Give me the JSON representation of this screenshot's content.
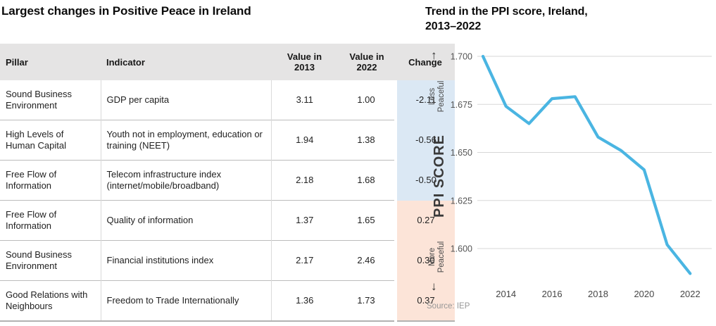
{
  "table": {
    "title": "Largest changes in Positive Peace in Ireland",
    "columns": [
      "Pillar",
      "Indicator",
      "Value in 2013",
      "Value in 2022",
      "Change"
    ],
    "rows": [
      {
        "pillar": "Sound Business Environment",
        "indicator": "GDP per capita",
        "value_2013": "3.11",
        "value_2022": "1.00",
        "change": "-2.11",
        "direction": "negative"
      },
      {
        "pillar": "High Levels of Human Capital",
        "indicator": "Youth not in employment, education or training (NEET)",
        "value_2013": "1.94",
        "value_2022": "1.38",
        "change": "-0.56",
        "direction": "negative"
      },
      {
        "pillar": "Free Flow of Information",
        "indicator": "Telecom infrastructure index (internet/mobile/broadband)",
        "value_2013": "2.18",
        "value_2022": "1.68",
        "change": "-0.50",
        "direction": "negative"
      },
      {
        "pillar": "Free Flow of Information",
        "indicator": "Quality of information",
        "value_2013": "1.37",
        "value_2022": "1.65",
        "change": "0.27",
        "direction": "positive"
      },
      {
        "pillar": "Sound Business Environment",
        "indicator": "Financial institutions index",
        "value_2013": "2.17",
        "value_2022": "2.46",
        "change": "0.30",
        "direction": "positive"
      },
      {
        "pillar": "Good Relations with Neighbours",
        "indicator": "Freedom to Trade Internationally",
        "value_2013": "1.36",
        "value_2022": "1.73",
        "change": "0.37",
        "direction": "positive"
      }
    ],
    "colors": {
      "header_bg": "#e5e4e4",
      "negative_change_bg": "#dbe8f4",
      "positive_change_bg": "#fce4d8"
    }
  },
  "chart": {
    "title_line1": "Trend in the PPI score, Ireland,",
    "title_line2": "2013–2022",
    "ylabel": "PPI SCORE",
    "axis_top_label": "Less Peaceful",
    "axis_bottom_label": "More Peaceful",
    "source": "Source: IEP",
    "icons": {
      "up_arrow": "↑",
      "down_arrow": "↓"
    }
  },
  "chart_data": {
    "type": "line",
    "title": "Trend in the PPI score, Ireland, 2013–2022",
    "xlabel": "",
    "ylabel": "PPI SCORE",
    "x": [
      2013,
      2014,
      2015,
      2016,
      2017,
      2018,
      2019,
      2020,
      2021,
      2022
    ],
    "values": [
      1.7,
      1.674,
      1.665,
      1.678,
      1.679,
      1.658,
      1.651,
      1.641,
      1.602,
      1.587
    ],
    "yticks": [
      1.7,
      1.675,
      1.65,
      1.625,
      1.6
    ],
    "ytick_labels": [
      "1.700",
      "1.675",
      "1.650",
      "1.625",
      "1.600"
    ],
    "xticks": [
      2014,
      2016,
      2018,
      2020,
      2022
    ],
    "xtick_labels": [
      "2014",
      "2016",
      "2018",
      "2020",
      "2022"
    ],
    "ylim": [
      1.58,
      1.705
    ],
    "xlim": [
      2013,
      2022.9
    ],
    "grid": "horizontal-only",
    "legend": "none",
    "line_color": "#4ab5e2",
    "gridline_color": "#d7d7d7",
    "annotations": [
      "Less Peaceful (up)",
      "More Peaceful (down)"
    ],
    "source": "Source: IEP"
  }
}
